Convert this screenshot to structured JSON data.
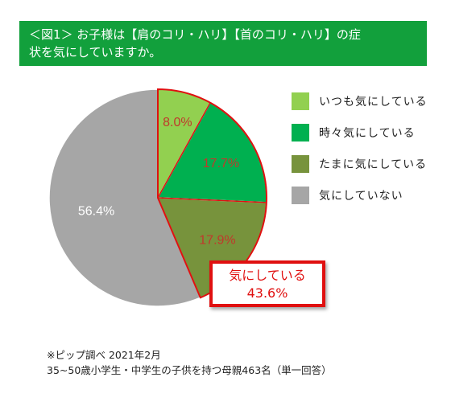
{
  "header": {
    "title_line1": "＜図1＞ お子様は【肩のコリ・ハリ】【首のコリ・ハリ】の症",
    "title_line2": "状を気にしていますか。"
  },
  "chart_data": {
    "type": "pie",
    "start_angle_deg": 0,
    "direction": "clockwise",
    "slices": [
      {
        "label": "いつも気にしている",
        "value": 8.0,
        "value_label": "8.0%",
        "color": "#92d050",
        "label_color": "#c0392b"
      },
      {
        "label": "時々気にしている",
        "value": 17.7,
        "value_label": "17.7%",
        "color": "#00b050",
        "label_color": "#c0392b"
      },
      {
        "label": "たまに気にしている",
        "value": 17.9,
        "value_label": "17.9%",
        "color": "#77933c",
        "label_color": "#c0392b"
      },
      {
        "label": "気にしていない",
        "value": 56.4,
        "value_label": "56.4%",
        "color": "#a6a6a6",
        "label_color": "#ffffff"
      }
    ],
    "highlight_outline_color": "#e01010",
    "legend_position": "right"
  },
  "callout": {
    "line1": "気にしている",
    "line2": "43.6%"
  },
  "footnote": {
    "line1": "※ピップ調べ 2021年2月",
    "line2": "35~50歳小学生・中学生の子供を持つ母親463名（単一回答）"
  }
}
